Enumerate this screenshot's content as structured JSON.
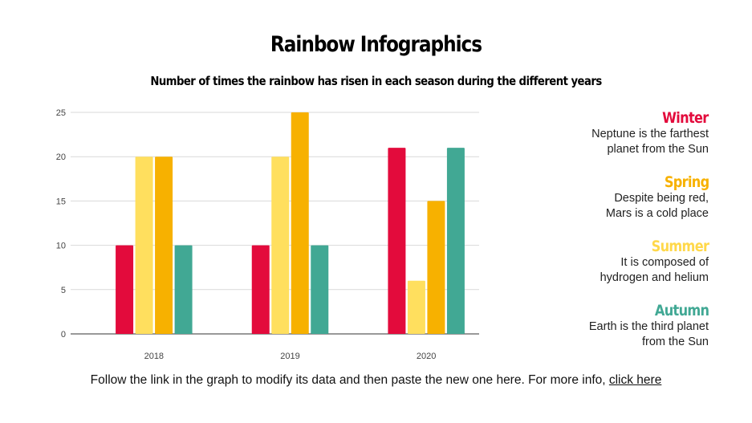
{
  "title": "Rainbow Infographics",
  "subtitle": "Number of times the rainbow has risen in each season during the different years",
  "legend": [
    {
      "name": "Winter",
      "desc1": "Neptune is the farthest",
      "desc2": "planet from the Sun",
      "color": "#E30B3C"
    },
    {
      "name": "Spring",
      "desc1": "Despite being red,",
      "desc2": "Mars is a cold place",
      "color": "#F7B100"
    },
    {
      "name": "Summer",
      "desc1": "It is composed of",
      "desc2": "hydrogen and helium",
      "color": "#FFDC5C"
    },
    {
      "name": "Autumn",
      "desc1": "Earth is the third planet",
      "desc2": "from the Sun",
      "color": "#41A894"
    }
  ],
  "footer": {
    "text": "Follow the link in the graph to modify its data and then paste the new one here. For more info, ",
    "link": "click here"
  },
  "chart_data": {
    "type": "bar",
    "categories": [
      "2018",
      "2019",
      "2020"
    ],
    "series": [
      {
        "name": "Winter",
        "color": "#E30B3C",
        "values": [
          10,
          10,
          21
        ]
      },
      {
        "name": "Summer",
        "color": "#FFDF5E",
        "values": [
          20,
          20,
          6
        ]
      },
      {
        "name": "Spring",
        "color": "#F7B100",
        "values": [
          20,
          25,
          15
        ]
      },
      {
        "name": "Autumn",
        "color": "#41A894",
        "values": [
          10,
          10,
          21
        ]
      }
    ],
    "ylim": [
      0,
      25
    ],
    "yticks": [
      0,
      5,
      10,
      15,
      20,
      25
    ],
    "grid": true,
    "legend": "right"
  }
}
